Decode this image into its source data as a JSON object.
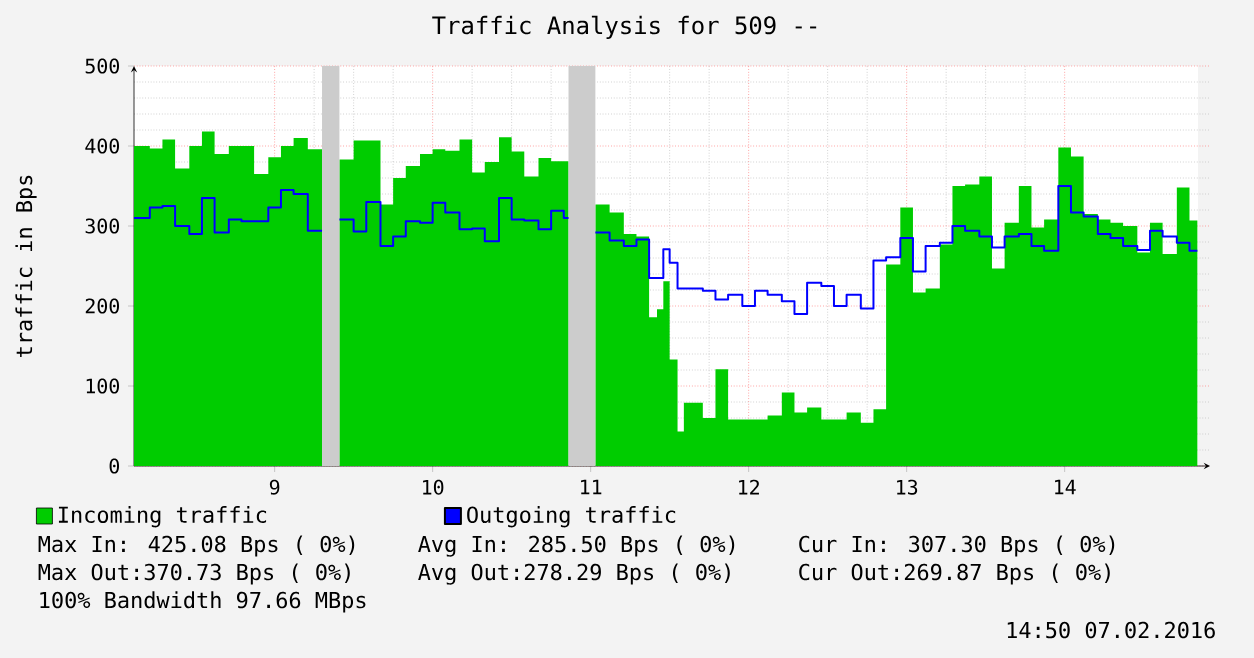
{
  "chart_data": {
    "type": "area",
    "title": "Traffic Analysis for 509 --",
    "ylabel": "traffic in Bps",
    "x": [
      8.11,
      8.21,
      8.29,
      8.37,
      8.46,
      8.54,
      8.62,
      8.71,
      8.79,
      8.87,
      8.96,
      9.04,
      9.12,
      9.21,
      9.3,
      9.41,
      9.5,
      9.58,
      9.67,
      9.75,
      9.83,
      9.92,
      10.0,
      10.08,
      10.17,
      10.25,
      10.33,
      10.42,
      10.5,
      10.58,
      10.67,
      10.75,
      10.83,
      10.86,
      11.03,
      11.12,
      11.21,
      11.29,
      11.37,
      11.42,
      11.46,
      11.5,
      11.55,
      11.59,
      11.71,
      11.79,
      11.87,
      11.96,
      12.04,
      12.12,
      12.21,
      12.29,
      12.37,
      12.46,
      12.54,
      12.62,
      12.71,
      12.79,
      12.87,
      12.96,
      13.04,
      13.12,
      13.21,
      13.29,
      13.37,
      13.46,
      13.54,
      13.62,
      13.71,
      13.79,
      13.87,
      13.96,
      14.04,
      14.12,
      14.21,
      14.29,
      14.37,
      14.46,
      14.54,
      14.62,
      14.71,
      14.79,
      14.84
    ],
    "series": [
      {
        "name": "Incoming traffic",
        "color": "#00cc00",
        "values": [
          400,
          397,
          408,
          372,
          400,
          418,
          390,
          400,
          400,
          365,
          386,
          400,
          410,
          396,
          null,
          383,
          407,
          407,
          327,
          360,
          375,
          390,
          396,
          394,
          408,
          367,
          380,
          411,
          393,
          362,
          385,
          381,
          381,
          null,
          327,
          317,
          290,
          287,
          186,
          196,
          231,
          133,
          43,
          79,
          60,
          121,
          58,
          58,
          58,
          63,
          92,
          67,
          73,
          58,
          58,
          67,
          54,
          71,
          252,
          323,
          217,
          222,
          277,
          350,
          352,
          362,
          247,
          304,
          350,
          298,
          308,
          398,
          387,
          315,
          308,
          304,
          300,
          267,
          304,
          265,
          348,
          307,
          307
        ]
      },
      {
        "name": "Outgoing traffic",
        "type": "step",
        "color": "#0000ff",
        "values": [
          310,
          323,
          325,
          300,
          290,
          335,
          292,
          308,
          306,
          306,
          323,
          345,
          340,
          294,
          null,
          308,
          293,
          330,
          275,
          287,
          306,
          304,
          329,
          317,
          296,
          297,
          281,
          335,
          308,
          307,
          296,
          319,
          310,
          null,
          292,
          282,
          275,
          283,
          235,
          235,
          271,
          254,
          222,
          222,
          219,
          208,
          214,
          200,
          219,
          214,
          206,
          190,
          229,
          225,
          200,
          214,
          197,
          257,
          261,
          285,
          243,
          275,
          279,
          300,
          294,
          287,
          273,
          287,
          290,
          275,
          269,
          350,
          317,
          312,
          290,
          285,
          275,
          270,
          294,
          287,
          279,
          269,
          269
        ]
      }
    ],
    "xlim": [
      8.11,
      14.92
    ],
    "xticks": [
      9,
      10,
      11,
      12,
      13,
      14
    ],
    "ylim": [
      0,
      500
    ],
    "yticks": [
      0,
      100,
      200,
      300,
      400,
      500
    ],
    "bands": [
      {
        "axis": "x",
        "from": 9.3,
        "to": 9.41,
        "color": "#cccccc"
      },
      {
        "axis": "x",
        "from": 10.86,
        "to": 11.03,
        "color": "#cccccc"
      }
    ],
    "grid": true,
    "legend": "bottom",
    "annotations": [
      "Max In: 425.08 Bps ( 0%)",
      "Avg In: 285.50 Bps ( 0%)",
      "Cur In: 307.30 Bps ( 0%)",
      "Max Out:370.73 Bps ( 0%)",
      "Avg Out:278.29 Bps ( 0%)",
      "Cur Out:269.87 Bps ( 0%)",
      "100% Bandwidth 97.66 MBps",
      "14:50 07.02.2016"
    ]
  }
}
